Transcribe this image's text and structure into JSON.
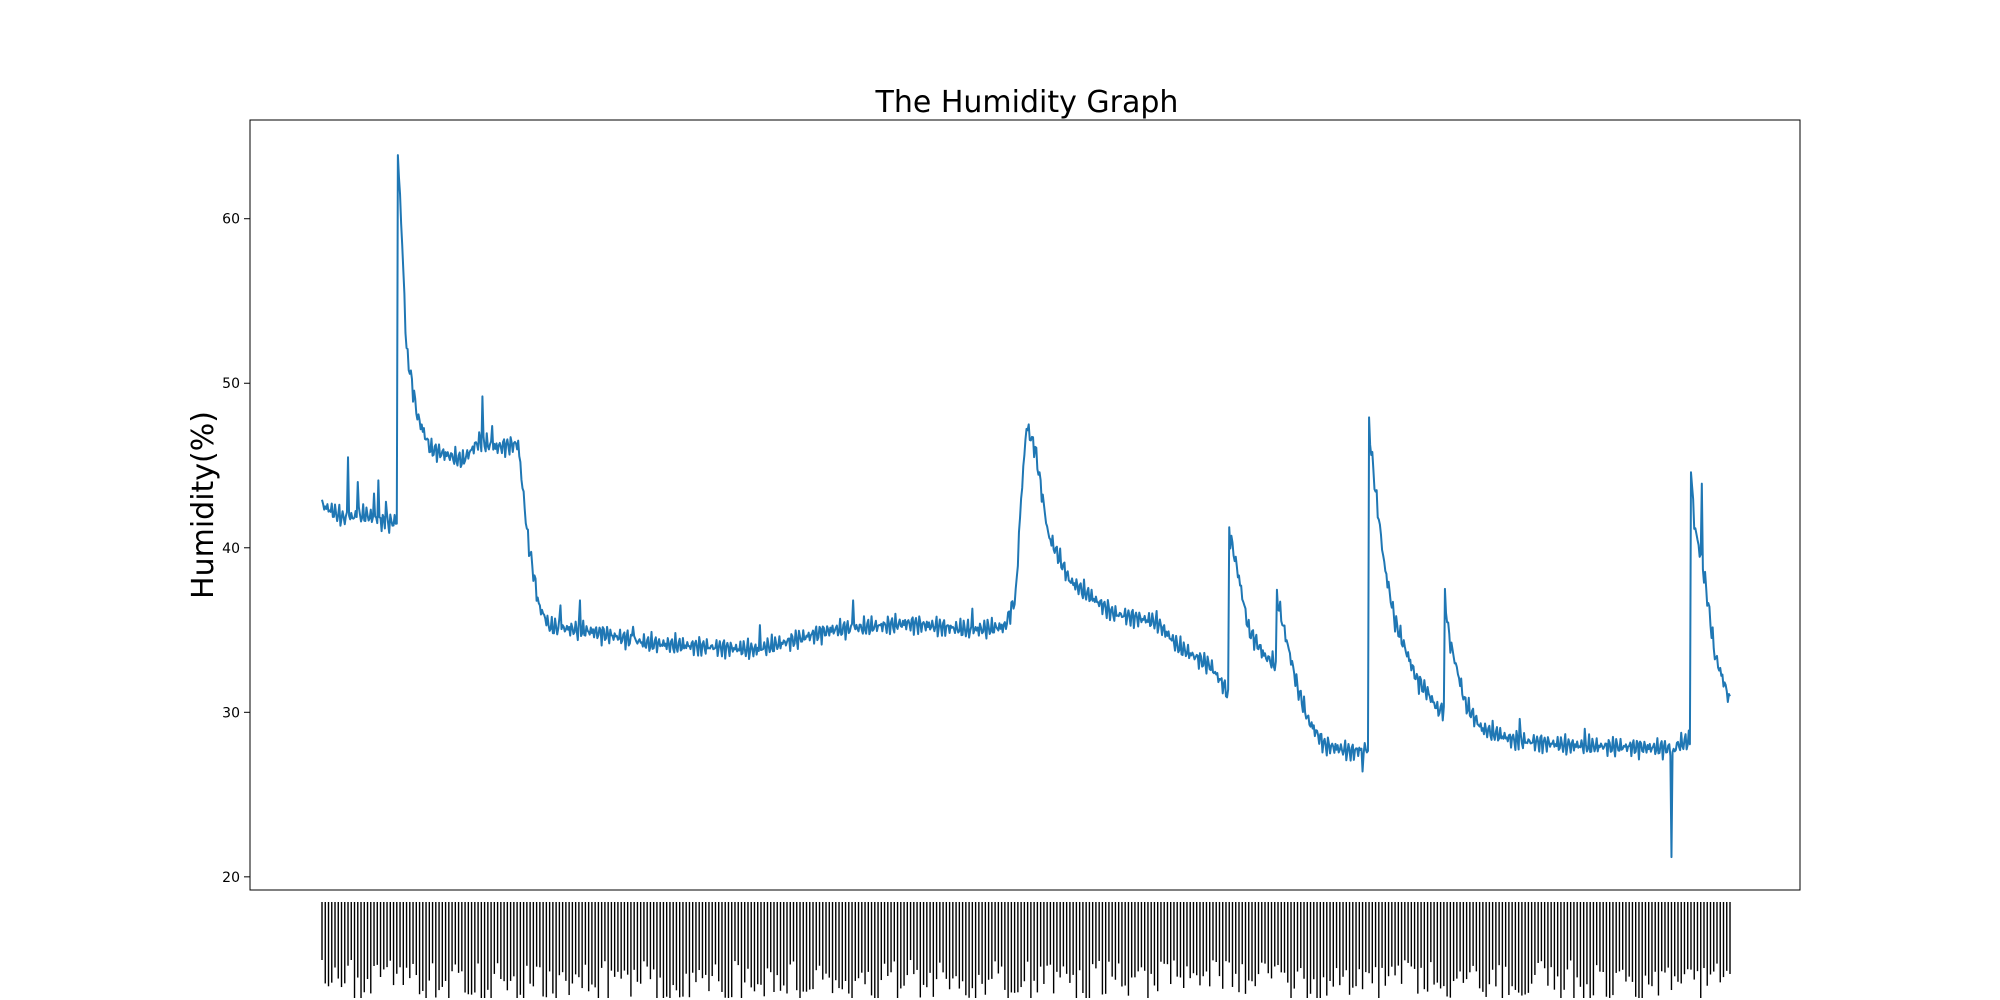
{
  "chart_data": {
    "type": "line",
    "title": "The Humidity Graph",
    "ylabel": "Humidity(%)",
    "xlabel": "",
    "ylim": [
      19.2,
      66.0
    ],
    "yticks": [
      20,
      30,
      40,
      50,
      60
    ],
    "grid": false,
    "legend": "none",
    "x_tick_labels_note": "dense overlapping rotated tick labels, unreadable",
    "series_color": "#1f77b4",
    "sample_count": 1300,
    "anchors": [
      [
        0,
        42.6
      ],
      [
        20,
        41.8
      ],
      [
        40,
        42.0
      ],
      [
        60,
        41.5
      ],
      [
        69,
        41.6
      ],
      [
        70,
        63.8
      ],
      [
        73,
        60.0
      ],
      [
        78,
        52.0
      ],
      [
        88,
        48.0
      ],
      [
        100,
        46.0
      ],
      [
        130,
        45.3
      ],
      [
        145,
        46.5
      ],
      [
        160,
        46.1
      ],
      [
        181,
        46.3
      ],
      [
        190,
        40.5
      ],
      [
        200,
        36.5
      ],
      [
        210,
        35.2
      ],
      [
        250,
        34.9
      ],
      [
        300,
        34.2
      ],
      [
        350,
        34.0
      ],
      [
        400,
        33.8
      ],
      [
        430,
        34.3
      ],
      [
        470,
        35.0
      ],
      [
        540,
        35.4
      ],
      [
        600,
        35.0
      ],
      [
        630,
        35.2
      ],
      [
        640,
        37.0
      ],
      [
        645,
        43.0
      ],
      [
        650,
        47.4
      ],
      [
        658,
        46.0
      ],
      [
        670,
        40.8
      ],
      [
        690,
        38.0
      ],
      [
        730,
        36.0
      ],
      [
        770,
        35.5
      ],
      [
        790,
        34.0
      ],
      [
        820,
        32.8
      ],
      [
        833,
        31.5
      ],
      [
        836,
        31.0
      ],
      [
        837,
        41.0
      ],
      [
        845,
        38.5
      ],
      [
        855,
        35.0
      ],
      [
        870,
        33.4
      ],
      [
        880,
        32.9
      ],
      [
        881,
        37.0
      ],
      [
        886,
        35.5
      ],
      [
        900,
        31.5
      ],
      [
        910,
        29.5
      ],
      [
        925,
        28.0
      ],
      [
        950,
        27.6
      ],
      [
        965,
        27.8
      ],
      [
        966,
        47.3
      ],
      [
        971,
        44.0
      ],
      [
        980,
        39.0
      ],
      [
        990,
        35.5
      ],
      [
        1010,
        32.0
      ],
      [
        1020,
        31.2
      ],
      [
        1030,
        30.1
      ],
      [
        1035,
        30.2
      ],
      [
        1036,
        37.0
      ],
      [
        1040,
        34.5
      ],
      [
        1055,
        30.5
      ],
      [
        1070,
        29.0
      ],
      [
        1100,
        28.3
      ],
      [
        1150,
        28.0
      ],
      [
        1200,
        27.9
      ],
      [
        1243,
        27.8
      ],
      [
        1247,
        27.6
      ],
      [
        1250,
        28.0
      ],
      [
        1262,
        28.3
      ],
      [
        1263,
        44.8
      ],
      [
        1266,
        41.5
      ],
      [
        1276,
        38.0
      ],
      [
        1285,
        33.5
      ],
      [
        1295,
        31.5
      ],
      [
        1299,
        30.6
      ]
    ],
    "spikes": [
      [
        24,
        45.5
      ],
      [
        33,
        44.0
      ],
      [
        48,
        43.3
      ],
      [
        52,
        44.1
      ],
      [
        59,
        42.8
      ],
      [
        148,
        49.2
      ],
      [
        157,
        47.4
      ],
      [
        220,
        36.5
      ],
      [
        238,
        36.8
      ],
      [
        287,
        35.2
      ],
      [
        404,
        35.3
      ],
      [
        490,
        36.8
      ],
      [
        600,
        36.3
      ],
      [
        960,
        26.4
      ],
      [
        1105,
        29.6
      ],
      [
        1165,
        29.0
      ],
      [
        1245,
        21.2
      ],
      [
        1273,
        43.9
      ]
    ]
  }
}
